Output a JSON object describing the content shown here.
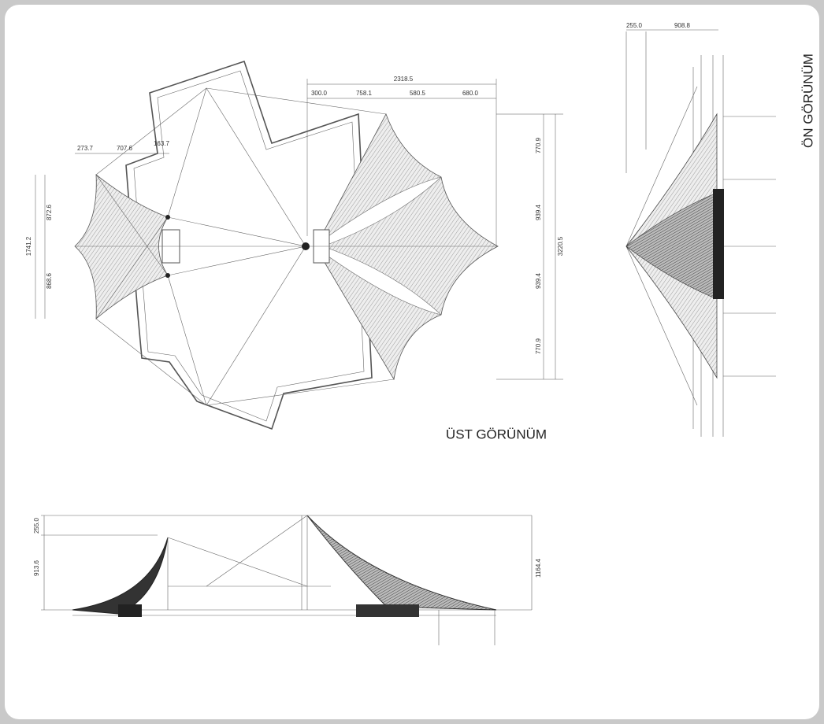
{
  "top_view": {
    "title": "ÜST GÖRÜNÜM",
    "dimensions": [
      "273.7",
      "707.6",
      "163.7",
      "2318.5",
      "300.0",
      "758.1",
      "580.5",
      "680.0",
      "770.9",
      "939.4",
      "3220.5",
      "939.4",
      "770.9",
      "1741.2",
      "872.6",
      "868.6"
    ]
  },
  "front_view": {
    "title": "ÖN GÖRÜNÜM",
    "dimensions": [
      "255.0",
      "908.8"
    ]
  },
  "side_view": {
    "dimensions": [
      "255.0",
      "913.6",
      "1164.4"
    ]
  }
}
